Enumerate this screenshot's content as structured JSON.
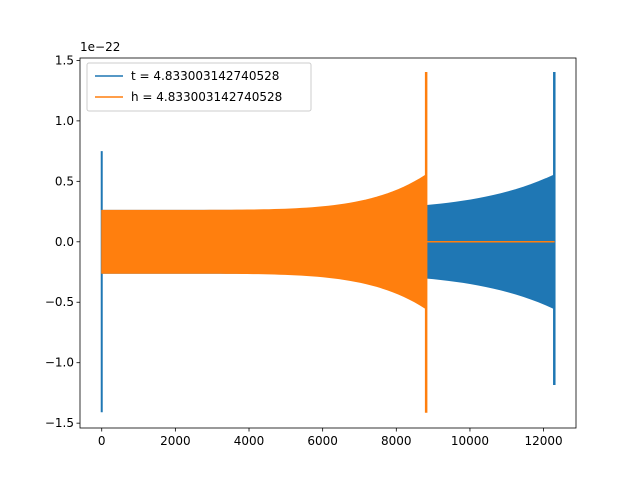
{
  "chart_data": {
    "type": "line",
    "title": "",
    "xlabel": "",
    "ylabel": "",
    "y_offset_label": "1e−22",
    "xlim": [
      -590,
      12880
    ],
    "ylim": [
      -1.54,
      1.52
    ],
    "xticks": [
      0,
      2000,
      4000,
      6000,
      8000,
      10000,
      12000
    ],
    "xtick_labels": [
      "0",
      "2000",
      "4000",
      "6000",
      "8000",
      "10000",
      "12000"
    ],
    "yticks": [
      -1.5,
      -1.0,
      -0.5,
      0.0,
      0.5,
      1.0,
      1.5
    ],
    "ytick_labels": [
      "−1.5",
      "−1.0",
      "−0.5",
      "0.0",
      "0.5",
      "1.0",
      "1.5"
    ],
    "grid": false,
    "legend_position": "top-left",
    "series": [
      {
        "name": "t = 4.833003142740528",
        "color": "#1f77b4",
        "shape": "chirp-oscillation",
        "spike_x": 0,
        "spike_top": 0.75,
        "spike_bottom": -1.41,
        "start_x": 0,
        "end_x": 12270,
        "peak_x": 12270,
        "envelope_start": 0.26,
        "envelope_before_peak": 0.55,
        "peak_top": 1.4,
        "peak_bottom": -1.18,
        "flat_until_x": 12300
      },
      {
        "name": "h = 4.833003142740528",
        "color": "#ff7f0e",
        "shape": "chirp-oscillation",
        "start_x": 0,
        "end_x": 8790,
        "peak_x": 8790,
        "envelope_start": 0.26,
        "envelope_before_peak": 0.55,
        "peak_top": 1.4,
        "peak_bottom": -1.41,
        "flat_until_x": 12300
      }
    ]
  }
}
